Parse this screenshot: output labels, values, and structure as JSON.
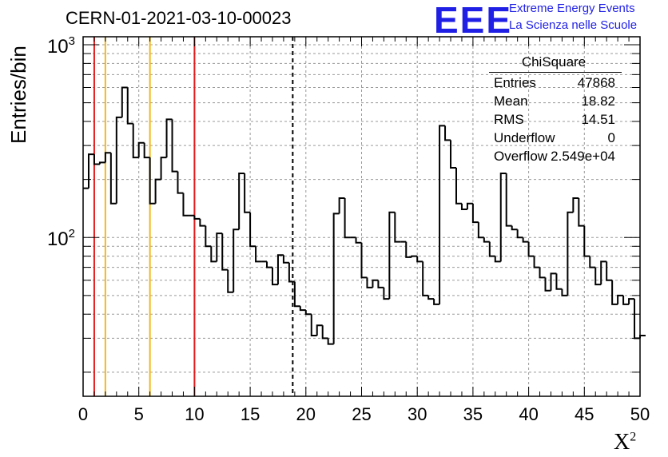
{
  "header": {
    "run_title": "CERN-01-2021-03-10-00023",
    "logo_text": "EEE",
    "logo_line1": "Extreme Energy Events",
    "logo_line2": "La Scienza nelle Scuole",
    "logo_color": "#1f1fe6"
  },
  "stats_box": {
    "title": "ChiSquare",
    "rows": [
      {
        "key": "Entries",
        "value": "47868"
      },
      {
        "key": "Mean",
        "value": "18.82"
      },
      {
        "key": "RMS",
        "value": "14.51"
      },
      {
        "key": "Underflow",
        "value": "0"
      },
      {
        "key": "Overflow",
        "value": "2.549e+04"
      }
    ]
  },
  "chart_data": {
    "type": "histogram",
    "title": "CERN-01-2021-03-10-00023",
    "xlabel": "X",
    "xlabel_superscript": "2",
    "ylabel": "Entries/bin",
    "xlim": [
      0,
      50
    ],
    "ylim": [
      15,
      1100
    ],
    "yscale": "log",
    "grid": true,
    "x_ticks": [
      0,
      5,
      10,
      15,
      20,
      25,
      30,
      35,
      40,
      45,
      50
    ],
    "y_ticks": [
      {
        "value": 100,
        "label": "10",
        "exp": "2"
      },
      {
        "value": 1000,
        "label": "10",
        "exp": "3"
      }
    ],
    "bin_width": 0.5,
    "bin_start": 0,
    "values": [
      180,
      270,
      240,
      245,
      275,
      150,
      420,
      600,
      390,
      260,
      310,
      260,
      150,
      200,
      260,
      410,
      220,
      170,
      130,
      130,
      125,
      115,
      90,
      75,
      105,
      68,
      52,
      110,
      215,
      135,
      90,
      75,
      75,
      70,
      57,
      81,
      74,
      59,
      44,
      42,
      40,
      31,
      35,
      30,
      28,
      133,
      160,
      100,
      100,
      94,
      62,
      55,
      60,
      55,
      48,
      135,
      95,
      95,
      79,
      80,
      75,
      50,
      48,
      45,
      380,
      320,
      230,
      150,
      140,
      150,
      120,
      100,
      95,
      80,
      75,
      215,
      115,
      110,
      100,
      95,
      80,
      70,
      62,
      53,
      65,
      54,
      50,
      135,
      160,
      115,
      80,
      70,
      57,
      75,
      60,
      45,
      50,
      45,
      48,
      30,
      31
    ],
    "reference_lines": [
      {
        "x": 1,
        "color": "#e41a1c",
        "style": "solid"
      },
      {
        "x": 2,
        "color": "#f2b91f",
        "style": "solid"
      },
      {
        "x": 6,
        "color": "#f2b91f",
        "style": "solid"
      },
      {
        "x": 10,
        "color": "#e41a1c",
        "style": "solid"
      },
      {
        "x": 18.82,
        "color": "#000000",
        "style": "dashed"
      }
    ]
  }
}
